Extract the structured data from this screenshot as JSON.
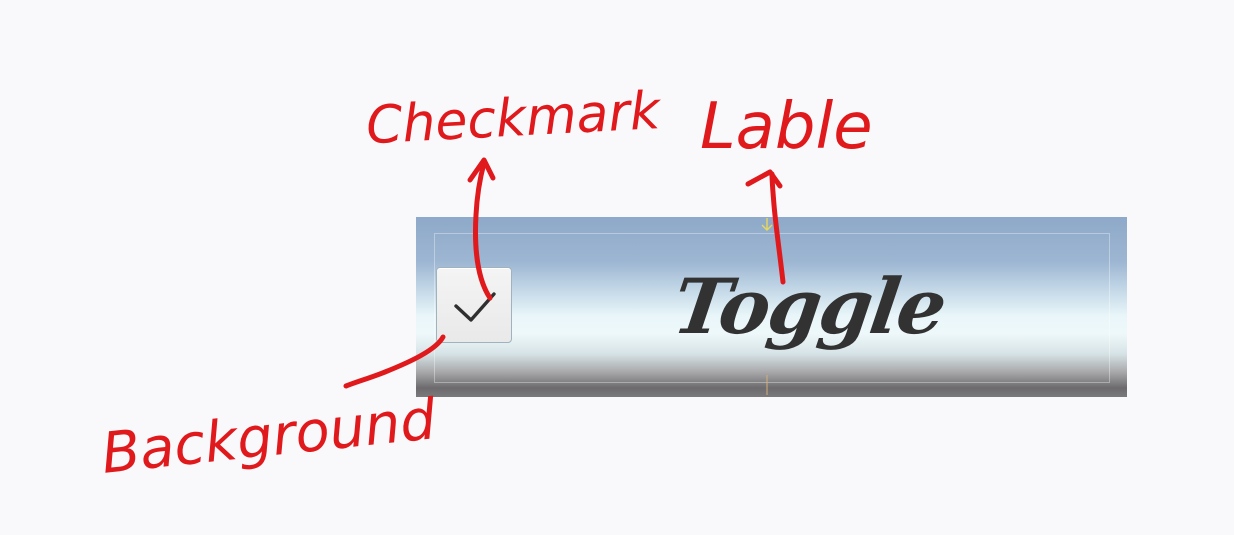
{
  "toggle": {
    "label": "Toggle",
    "checked": true,
    "icons": {
      "checkmark": "checkmark-icon"
    }
  },
  "annotations": {
    "checkmark": "Checkmark",
    "label": "Lable",
    "background": "Background",
    "color": "#e0191c"
  }
}
